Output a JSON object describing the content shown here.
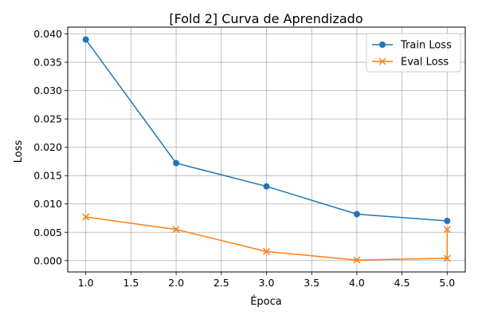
{
  "chart_data": {
    "type": "line",
    "title": "[Fold 2] Curva de Aprendizado",
    "xlabel": "Época",
    "ylabel": "Loss",
    "xlim": [
      0.8,
      5.2
    ],
    "ylim": [
      -0.002,
      0.0412
    ],
    "xticks": [
      "1.0",
      "1.5",
      "2.0",
      "2.5",
      "3.0",
      "3.5",
      "4.0",
      "4.5",
      "5.0"
    ],
    "yticks": [
      "0.000",
      "0.005",
      "0.010",
      "0.015",
      "0.020",
      "0.025",
      "0.030",
      "0.035",
      "0.040"
    ],
    "grid": true,
    "legend_position": "top-right",
    "series": [
      {
        "name": "Train Loss",
        "color": "#1f77b4",
        "marker": "circle",
        "x": [
          1,
          2,
          3,
          4,
          5
        ],
        "y": [
          0.039,
          0.0172,
          0.0131,
          0.0082,
          0.007
        ]
      },
      {
        "name": "Eval Loss",
        "color": "#ff7f0e",
        "marker": "x",
        "x": [
          1,
          2,
          3,
          4,
          5,
          5
        ],
        "y": [
          0.0077,
          0.0055,
          0.0016,
          0.0001,
          0.0004,
          0.0055
        ]
      }
    ]
  }
}
